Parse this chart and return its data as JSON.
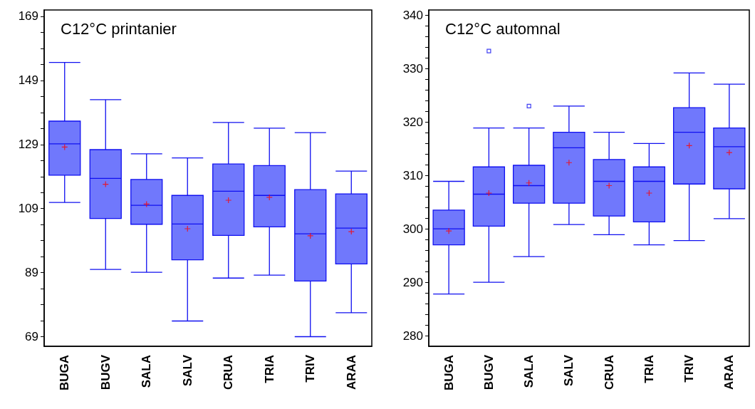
{
  "chart_data": [
    {
      "type": "box",
      "title": "C12°C printanier",
      "categories": [
        "BUGA",
        "BUGV",
        "SALA",
        "SALV",
        "CRUA",
        "TRIA",
        "TRIV",
        "ARAA"
      ],
      "color": "#7078fc",
      "grid": false,
      "ylim": [
        66,
        171
      ],
      "yticks": [
        69,
        {
          "value": 74,
          "label": null
        },
        {
          "value": 79,
          "label": null
        },
        {
          "value": 84,
          "label": null
        },
        89,
        {
          "value": 94,
          "label": null
        },
        {
          "value": 99,
          "label": null
        },
        {
          "value": 104,
          "label": null
        },
        109,
        {
          "value": 114,
          "label": null
        },
        {
          "value": 119,
          "label": null
        },
        {
          "value": 124,
          "label": null
        },
        129,
        {
          "value": 134,
          "label": null
        },
        {
          "value": 139,
          "label": null
        },
        {
          "value": 144,
          "label": null
        },
        149,
        {
          "value": 154,
          "label": null
        },
        {
          "value": 159,
          "label": null
        },
        {
          "value": 164,
          "label": null
        },
        169
      ],
      "boxes": [
        {
          "low": 110.9,
          "q1": 119.4,
          "median": 129.2,
          "q3": 136.3,
          "high": 154.6,
          "mean": 128.2
        },
        {
          "low": 90.0,
          "q1": 105.9,
          "median": 118.4,
          "q3": 127.4,
          "high": 143.0,
          "mean": 116.6
        },
        {
          "low": 89.1,
          "q1": 104.1,
          "median": 110.0,
          "q3": 118.1,
          "high": 126.1,
          "mean": 110.4
        },
        {
          "low": 73.9,
          "q1": 93.0,
          "median": 104.2,
          "q3": 113.1,
          "high": 124.8,
          "mean": 102.7
        },
        {
          "low": 87.3,
          "q1": 100.6,
          "median": 114.4,
          "q3": 122.9,
          "high": 135.9,
          "mean": 111.6
        },
        {
          "low": 88.2,
          "q1": 103.3,
          "median": 113.1,
          "q3": 122.4,
          "high": 134.1,
          "mean": 112.5
        },
        {
          "low": 69.0,
          "q1": 86.4,
          "median": 101.1,
          "q3": 114.9,
          "high": 132.7,
          "mean": 100.5
        },
        {
          "low": 76.5,
          "q1": 91.7,
          "median": 102.9,
          "q3": 113.6,
          "high": 120.7,
          "mean": 101.8
        }
      ]
    },
    {
      "type": "box",
      "title": "C12°C automnal",
      "categories": [
        "BUGA",
        "BUGV",
        "SALA",
        "SALV",
        "CRUA",
        "TRIA",
        "TRIV",
        "ARAA"
      ],
      "color": "#7078fc",
      "grid": false,
      "ylim": [
        278,
        341
      ],
      "yticks": [
        280,
        {
          "value": 282,
          "label": null
        },
        {
          "value": 284,
          "label": null
        },
        {
          "value": 286,
          "label": null
        },
        {
          "value": 288,
          "label": null
        },
        290,
        {
          "value": 292,
          "label": null
        },
        {
          "value": 294,
          "label": null
        },
        {
          "value": 296,
          "label": null
        },
        {
          "value": 298,
          "label": null
        },
        300,
        {
          "value": 302,
          "label": null
        },
        {
          "value": 304,
          "label": null
        },
        {
          "value": 306,
          "label": null
        },
        {
          "value": 308,
          "label": null
        },
        310,
        {
          "value": 312,
          "label": null
        },
        {
          "value": 314,
          "label": null
        },
        {
          "value": 316,
          "label": null
        },
        {
          "value": 318,
          "label": null
        },
        320,
        {
          "value": 322,
          "label": null
        },
        {
          "value": 324,
          "label": null
        },
        {
          "value": 326,
          "label": null
        },
        {
          "value": 328,
          "label": null
        },
        330,
        {
          "value": 332,
          "label": null
        },
        {
          "value": 334,
          "label": null
        },
        {
          "value": 336,
          "label": null
        },
        {
          "value": 338,
          "label": null
        },
        340
      ],
      "boxes": [
        {
          "low": 287.8,
          "q1": 297.0,
          "median": 300.0,
          "q3": 303.5,
          "high": 308.9,
          "mean": 299.6
        },
        {
          "low": 290.0,
          "q1": 300.5,
          "median": 306.5,
          "q3": 311.6,
          "high": 318.9,
          "mean": 306.7,
          "outliers": [
            333.3
          ]
        },
        {
          "low": 294.8,
          "q1": 304.8,
          "median": 308.1,
          "q3": 311.9,
          "high": 318.9,
          "mean": 308.6,
          "outliers": [
            323.0
          ]
        },
        {
          "low": 300.8,
          "q1": 304.8,
          "median": 315.2,
          "q3": 318.1,
          "high": 323.0,
          "mean": 312.4
        },
        {
          "low": 298.9,
          "q1": 302.4,
          "median": 308.9,
          "q3": 313.0,
          "high": 318.1,
          "mean": 308.1
        },
        {
          "low": 297.0,
          "q1": 301.3,
          "median": 308.9,
          "q3": 311.6,
          "high": 316.0,
          "mean": 306.7
        },
        {
          "low": 297.8,
          "q1": 308.4,
          "median": 318.1,
          "q3": 322.7,
          "high": 329.2,
          "mean": 315.6
        },
        {
          "low": 301.9,
          "q1": 307.5,
          "median": 315.4,
          "q3": 318.9,
          "high": 327.1,
          "mean": 314.3
        }
      ]
    }
  ]
}
